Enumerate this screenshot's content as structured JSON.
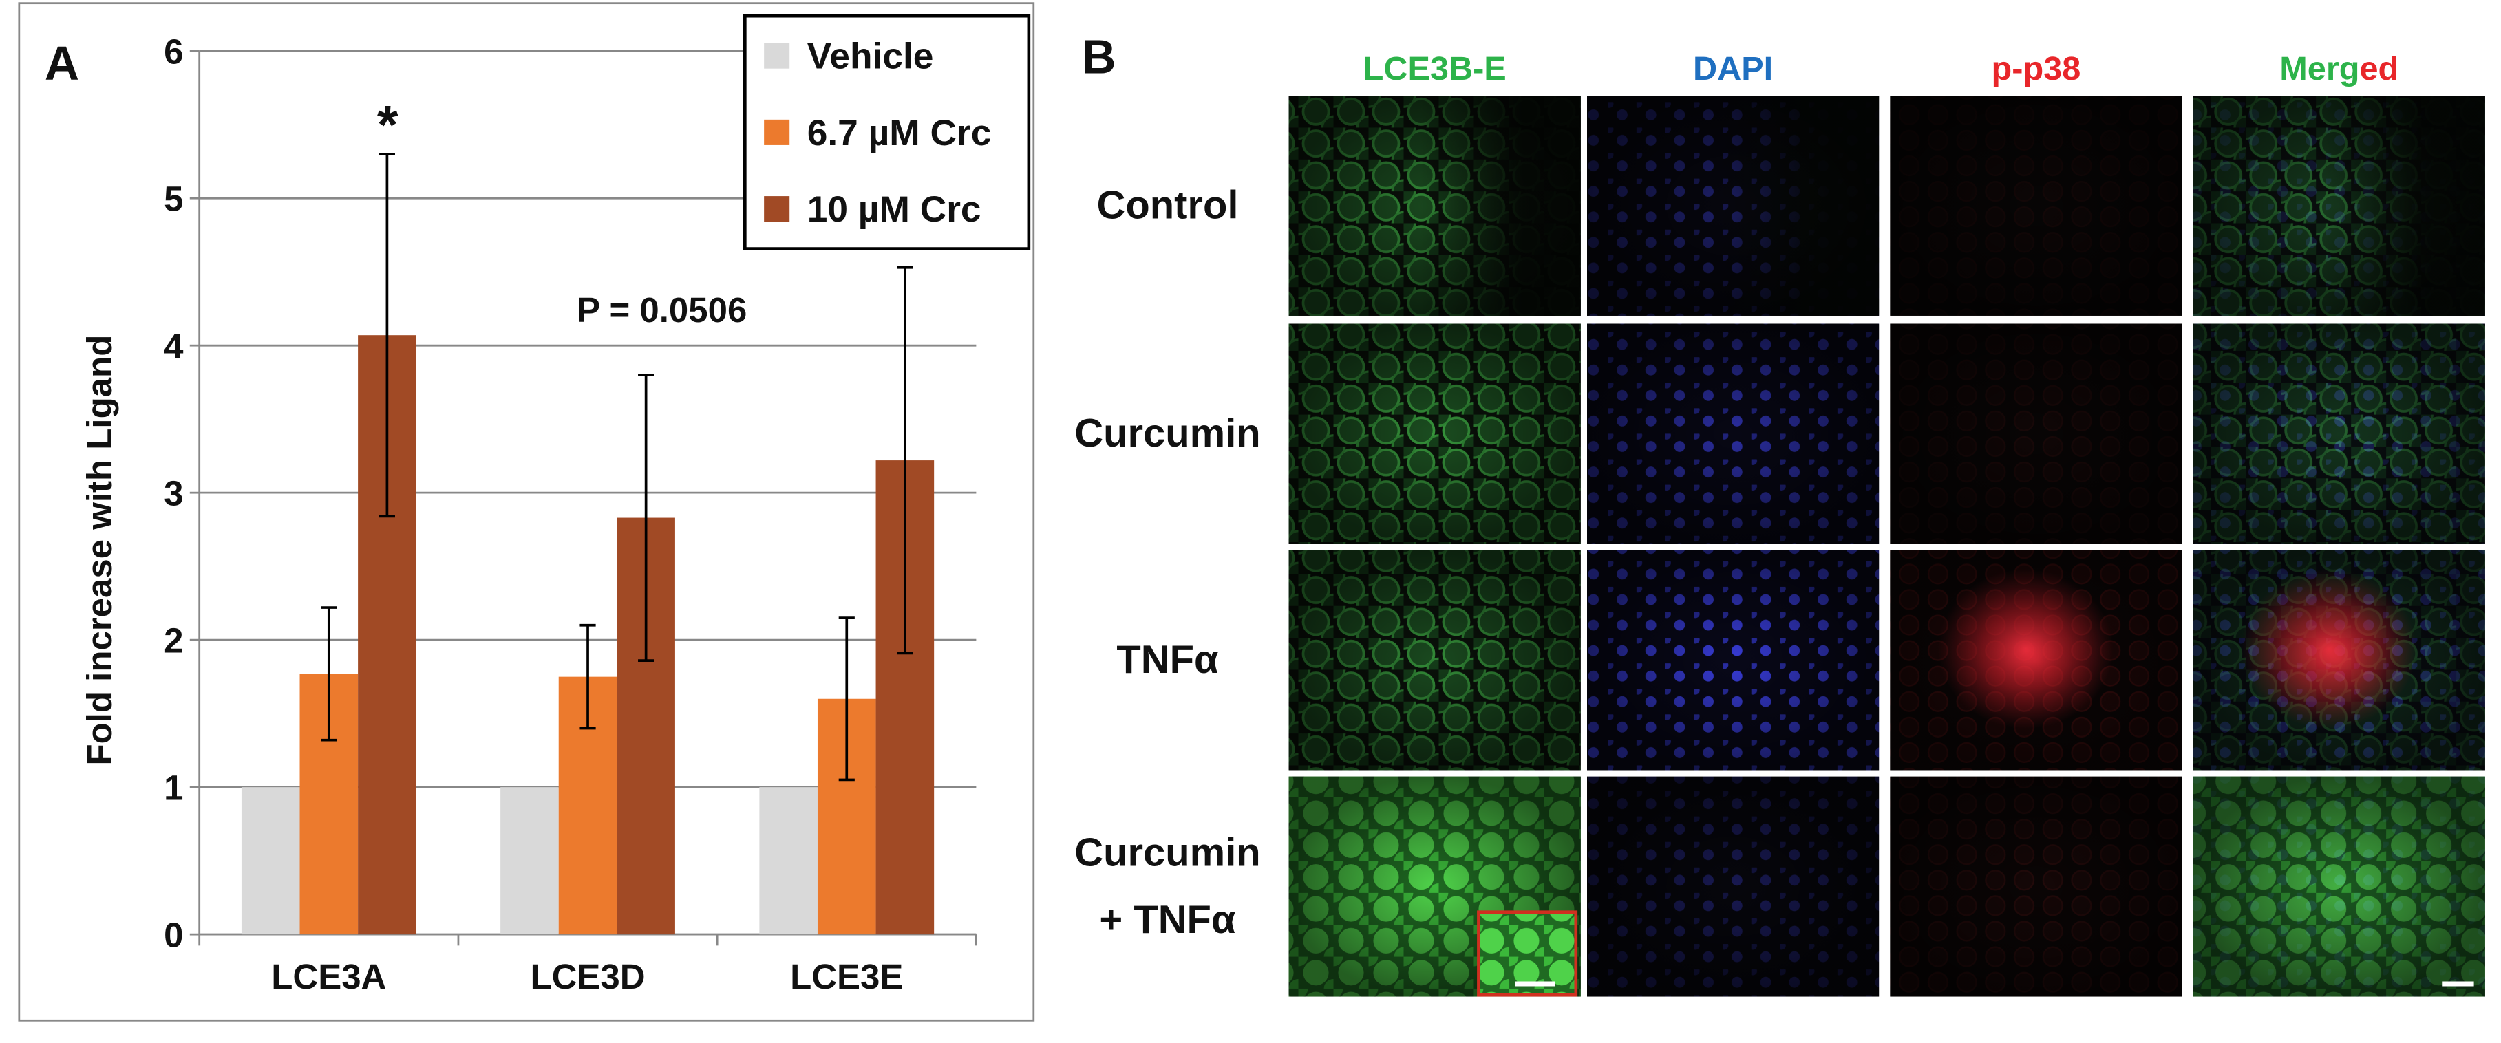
{
  "chart_data": {
    "type": "bar",
    "panel_label": "A",
    "y_label": "Fold increase with Ligand",
    "categories": [
      "LCE3A",
      "LCE3D",
      "LCE3E"
    ],
    "series": [
      {
        "name": "Vehicle",
        "color": "#d9d9d9",
        "values": [
          1,
          1,
          1
        ]
      },
      {
        "name": "6.7 µM Crc",
        "color": "#ec7a2d",
        "values": [
          1.77,
          1.75,
          1.6
        ],
        "errors": [
          0.45,
          0.35,
          0.55
        ]
      },
      {
        "name": "10 µM Crc",
        "color": "#a14a25",
        "values": [
          4.07,
          2.83,
          3.22
        ],
        "errors": [
          1.23,
          0.97,
          1.31
        ]
      }
    ],
    "annotations": [
      "*",
      "P = 0.0506"
    ],
    "ylim": [
      0,
      6
    ],
    "yticks": [
      0,
      1,
      2,
      3,
      4,
      5,
      6
    ],
    "grid": true,
    "legend": "top-right"
  },
  "panel_b": {
    "label": "B",
    "columns": [
      [
        "LCE3B-E"
      ],
      [
        "DAPI"
      ],
      [
        "p-p38"
      ],
      [
        "Merg",
        "ed"
      ]
    ],
    "rows": [
      [
        "Control"
      ],
      [
        "Curcumin"
      ],
      [
        "TNFα"
      ],
      [
        "Curcumin",
        "+ TNFα"
      ]
    ]
  }
}
